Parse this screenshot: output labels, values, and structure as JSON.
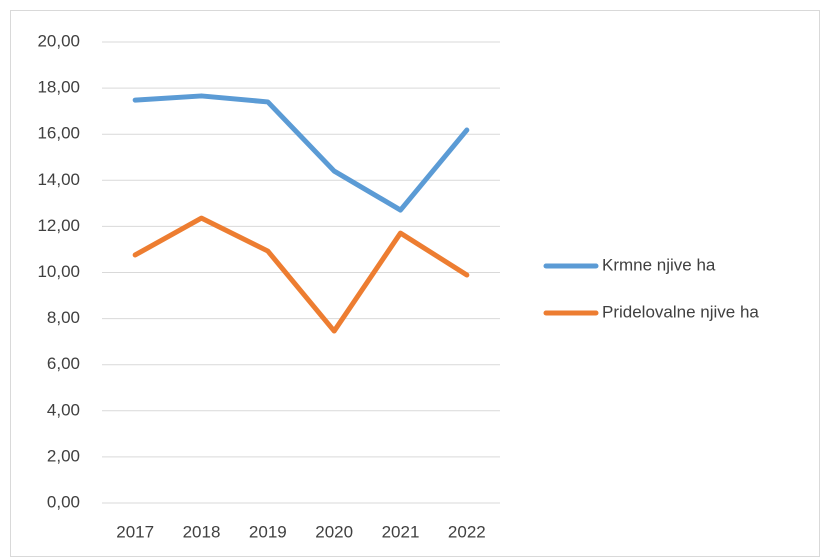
{
  "chart_data": {
    "type": "line",
    "categories": [
      "2017",
      "2018",
      "2019",
      "2020",
      "2021",
      "2022"
    ],
    "series": [
      {
        "name": "Krmne njive ha",
        "color": "#5b9bd5",
        "values": [
          17.48,
          17.66,
          17.4,
          14.4,
          12.71,
          16.18
        ]
      },
      {
        "name": "Pridelovalne njive ha",
        "color": "#ed7d31",
        "values": [
          10.76,
          12.36,
          10.93,
          7.46,
          11.71,
          9.89
        ]
      }
    ],
    "ylim": [
      0,
      20
    ],
    "yticks": [
      {
        "value": 0,
        "label": "0,00"
      },
      {
        "value": 2,
        "label": "2,00"
      },
      {
        "value": 4,
        "label": "4,00"
      },
      {
        "value": 6,
        "label": "6,00"
      },
      {
        "value": 8,
        "label": "8,00"
      },
      {
        "value": 10,
        "label": "10,00"
      },
      {
        "value": 12,
        "label": "12,00"
      },
      {
        "value": 14,
        "label": "14,00"
      },
      {
        "value": 16,
        "label": "16,00"
      },
      {
        "value": 18,
        "label": "18,00"
      },
      {
        "value": 20,
        "label": "20,00"
      }
    ],
    "grid": true,
    "legend": "right"
  }
}
